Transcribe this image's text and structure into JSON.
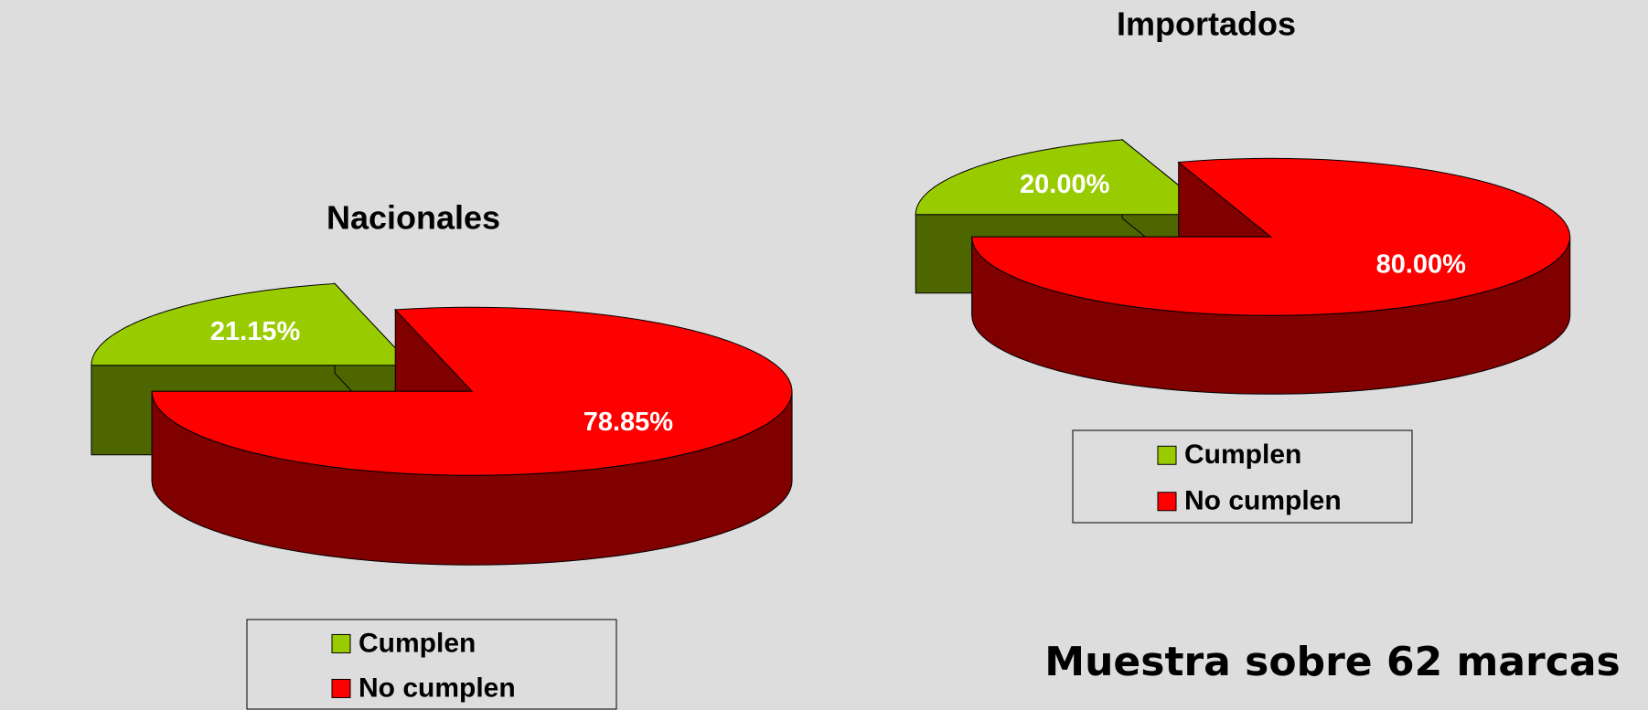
{
  "chart_data": [
    {
      "type": "pie3d",
      "title": "Nacionales",
      "categories": [
        "Cumplen",
        "No cumplen"
      ],
      "values": [
        21.15,
        78.85
      ],
      "value_labels": [
        "21.15%",
        "78.85%"
      ],
      "colors": [
        "#99cc00",
        "#ff0000"
      ]
    },
    {
      "type": "pie3d",
      "title": "Importados",
      "categories": [
        "Cumplen",
        "No cumplen"
      ],
      "values": [
        20.0,
        80.0
      ],
      "value_labels": [
        "20.00%",
        "80.00%"
      ],
      "colors": [
        "#99cc00",
        "#ff0000"
      ]
    }
  ],
  "note": "Muestra sobre 62 marcas"
}
